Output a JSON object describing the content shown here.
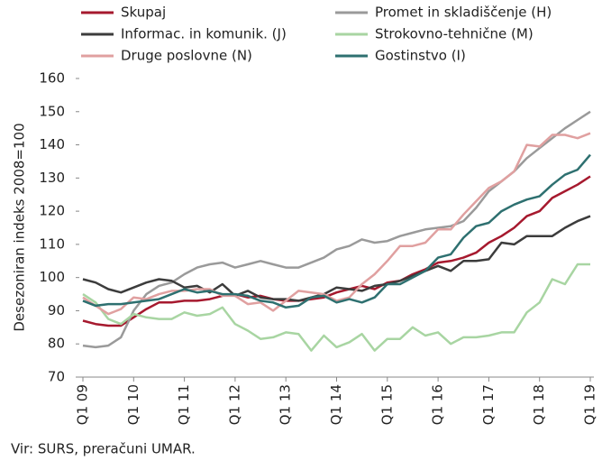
{
  "chart_data": {
    "type": "line",
    "y_axis_label": "Desezoniran indeks 2008=100",
    "source": "Vir: SURS, preračuni UMAR.",
    "categories": [
      "Q1 09",
      null,
      null,
      null,
      "Q1 10",
      null,
      null,
      null,
      "Q1 11",
      null,
      null,
      null,
      "Q1 12",
      null,
      null,
      null,
      "Q1 13",
      null,
      null,
      null,
      "Q1 14",
      null,
      null,
      null,
      "Q1 15",
      null,
      null,
      null,
      "Q1 16",
      null,
      null,
      null,
      "Q1 17",
      null,
      null,
      null,
      "Q1 18",
      null,
      null,
      null,
      "Q1 19"
    ],
    "ylim": [
      70,
      160
    ],
    "yticks": [
      70,
      80,
      90,
      100,
      110,
      120,
      130,
      140,
      150,
      160
    ],
    "series": [
      {
        "name": "Skupaj",
        "color": "#a6192e",
        "values": [
          87,
          86,
          85.5,
          85.5,
          88,
          90.5,
          92.5,
          92.5,
          93,
          93,
          93.5,
          94.5,
          95,
          94,
          94.5,
          93.5,
          93,
          93,
          93.5,
          94,
          95.5,
          96.5,
          97.5,
          96.5,
          98.5,
          99,
          101,
          102.5,
          104.5,
          105,
          106,
          107.5,
          110.5,
          112.5,
          115,
          118.5,
          120,
          124,
          126,
          128,
          130.5
        ]
      },
      {
        "name": "Promet in skladiščenje (H)",
        "color": "#9a9a9a",
        "values": [
          79.5,
          79,
          79.5,
          82,
          90,
          95,
          97.5,
          98.5,
          101,
          103,
          104,
          104.5,
          103,
          104,
          105,
          104,
          103,
          103,
          104.5,
          106,
          108.5,
          109.5,
          111.5,
          110.5,
          111,
          112.5,
          113.5,
          114.5,
          115,
          115.5,
          117,
          121,
          126,
          129,
          132,
          136,
          139,
          142,
          145,
          147.5,
          150
        ]
      },
      {
        "name": "Informac. in komunik. (J)",
        "color": "#3c3c3c",
        "values": [
          99.5,
          98.5,
          96.5,
          95.5,
          97,
          98.5,
          99.5,
          99,
          97,
          97.5,
          95.5,
          98,
          94.5,
          96,
          94,
          93.5,
          93.5,
          93,
          94,
          95,
          97,
          96.5,
          96,
          97.5,
          98,
          99,
          100.5,
          102,
          103.5,
          102,
          105,
          105,
          105.5,
          110.5,
          110,
          112.5,
          112.5,
          112.5,
          115,
          117,
          118.5
        ]
      },
      {
        "name": "Strokovno-tehnične (M)",
        "color": "#a8d5a2",
        "values": [
          95,
          92.5,
          87.5,
          86,
          89,
          88,
          87.5,
          87.5,
          89.5,
          88.5,
          89,
          91,
          86,
          84,
          81.5,
          82,
          83.5,
          83,
          78,
          82.5,
          79,
          80.5,
          83,
          78,
          81.5,
          81.5,
          85,
          82.5,
          83.5,
          80,
          82,
          82,
          82.5,
          83.5,
          83.5,
          89.5,
          92.5,
          99.5,
          98,
          104,
          104
        ]
      },
      {
        "name": "Druge poslovne (N)",
        "color": "#e0a0a0",
        "values": [
          94,
          91.5,
          89,
          90.5,
          94,
          93.5,
          95,
          96,
          96,
          96.5,
          96.5,
          94.5,
          94.5,
          92,
          92.5,
          90,
          93,
          96,
          95.5,
          95,
          93,
          94,
          98,
          101,
          105,
          109.5,
          109.5,
          110.5,
          114.5,
          114.5,
          119,
          123,
          127,
          129,
          132,
          140,
          139.5,
          143,
          143,
          142,
          143.5
        ]
      },
      {
        "name": "Gostinstvo (I)",
        "color": "#2e7070",
        "values": [
          93,
          91.5,
          92,
          92,
          92.5,
          93,
          93.5,
          95,
          96.5,
          95.5,
          96,
          95,
          95,
          94.5,
          93,
          92.5,
          91,
          91.5,
          94,
          94.5,
          92.5,
          93.5,
          92.5,
          94,
          98,
          98,
          100,
          102,
          106,
          107,
          112,
          115.5,
          116.5,
          120,
          122,
          123.5,
          124.5,
          128,
          131,
          132.5,
          137
        ]
      }
    ]
  }
}
